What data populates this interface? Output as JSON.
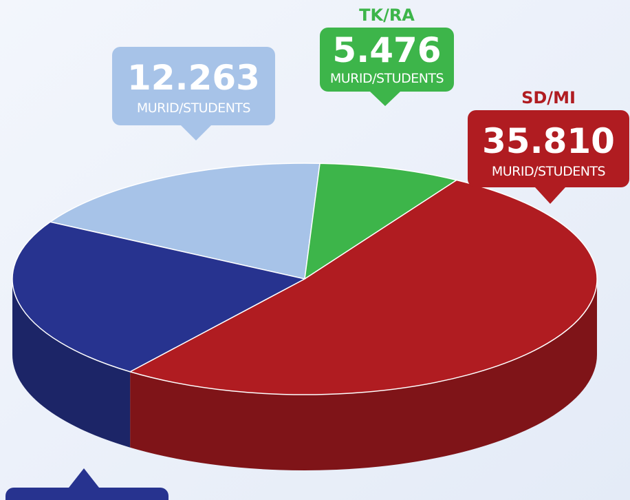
{
  "chart_data": {
    "type": "pie",
    "categories": [
      null,
      "TK/RA",
      "SD/MI",
      null
    ],
    "values": [
      12263,
      5476,
      35810,
      16000
    ],
    "value_labels": [
      "12.263",
      "5.476",
      "35.810",
      null
    ],
    "unit_label": "MURID/STUDENTS",
    "colors": [
      "#a7c3e8",
      "#3db54a",
      "#b01c21",
      "#27338f"
    ]
  }
}
